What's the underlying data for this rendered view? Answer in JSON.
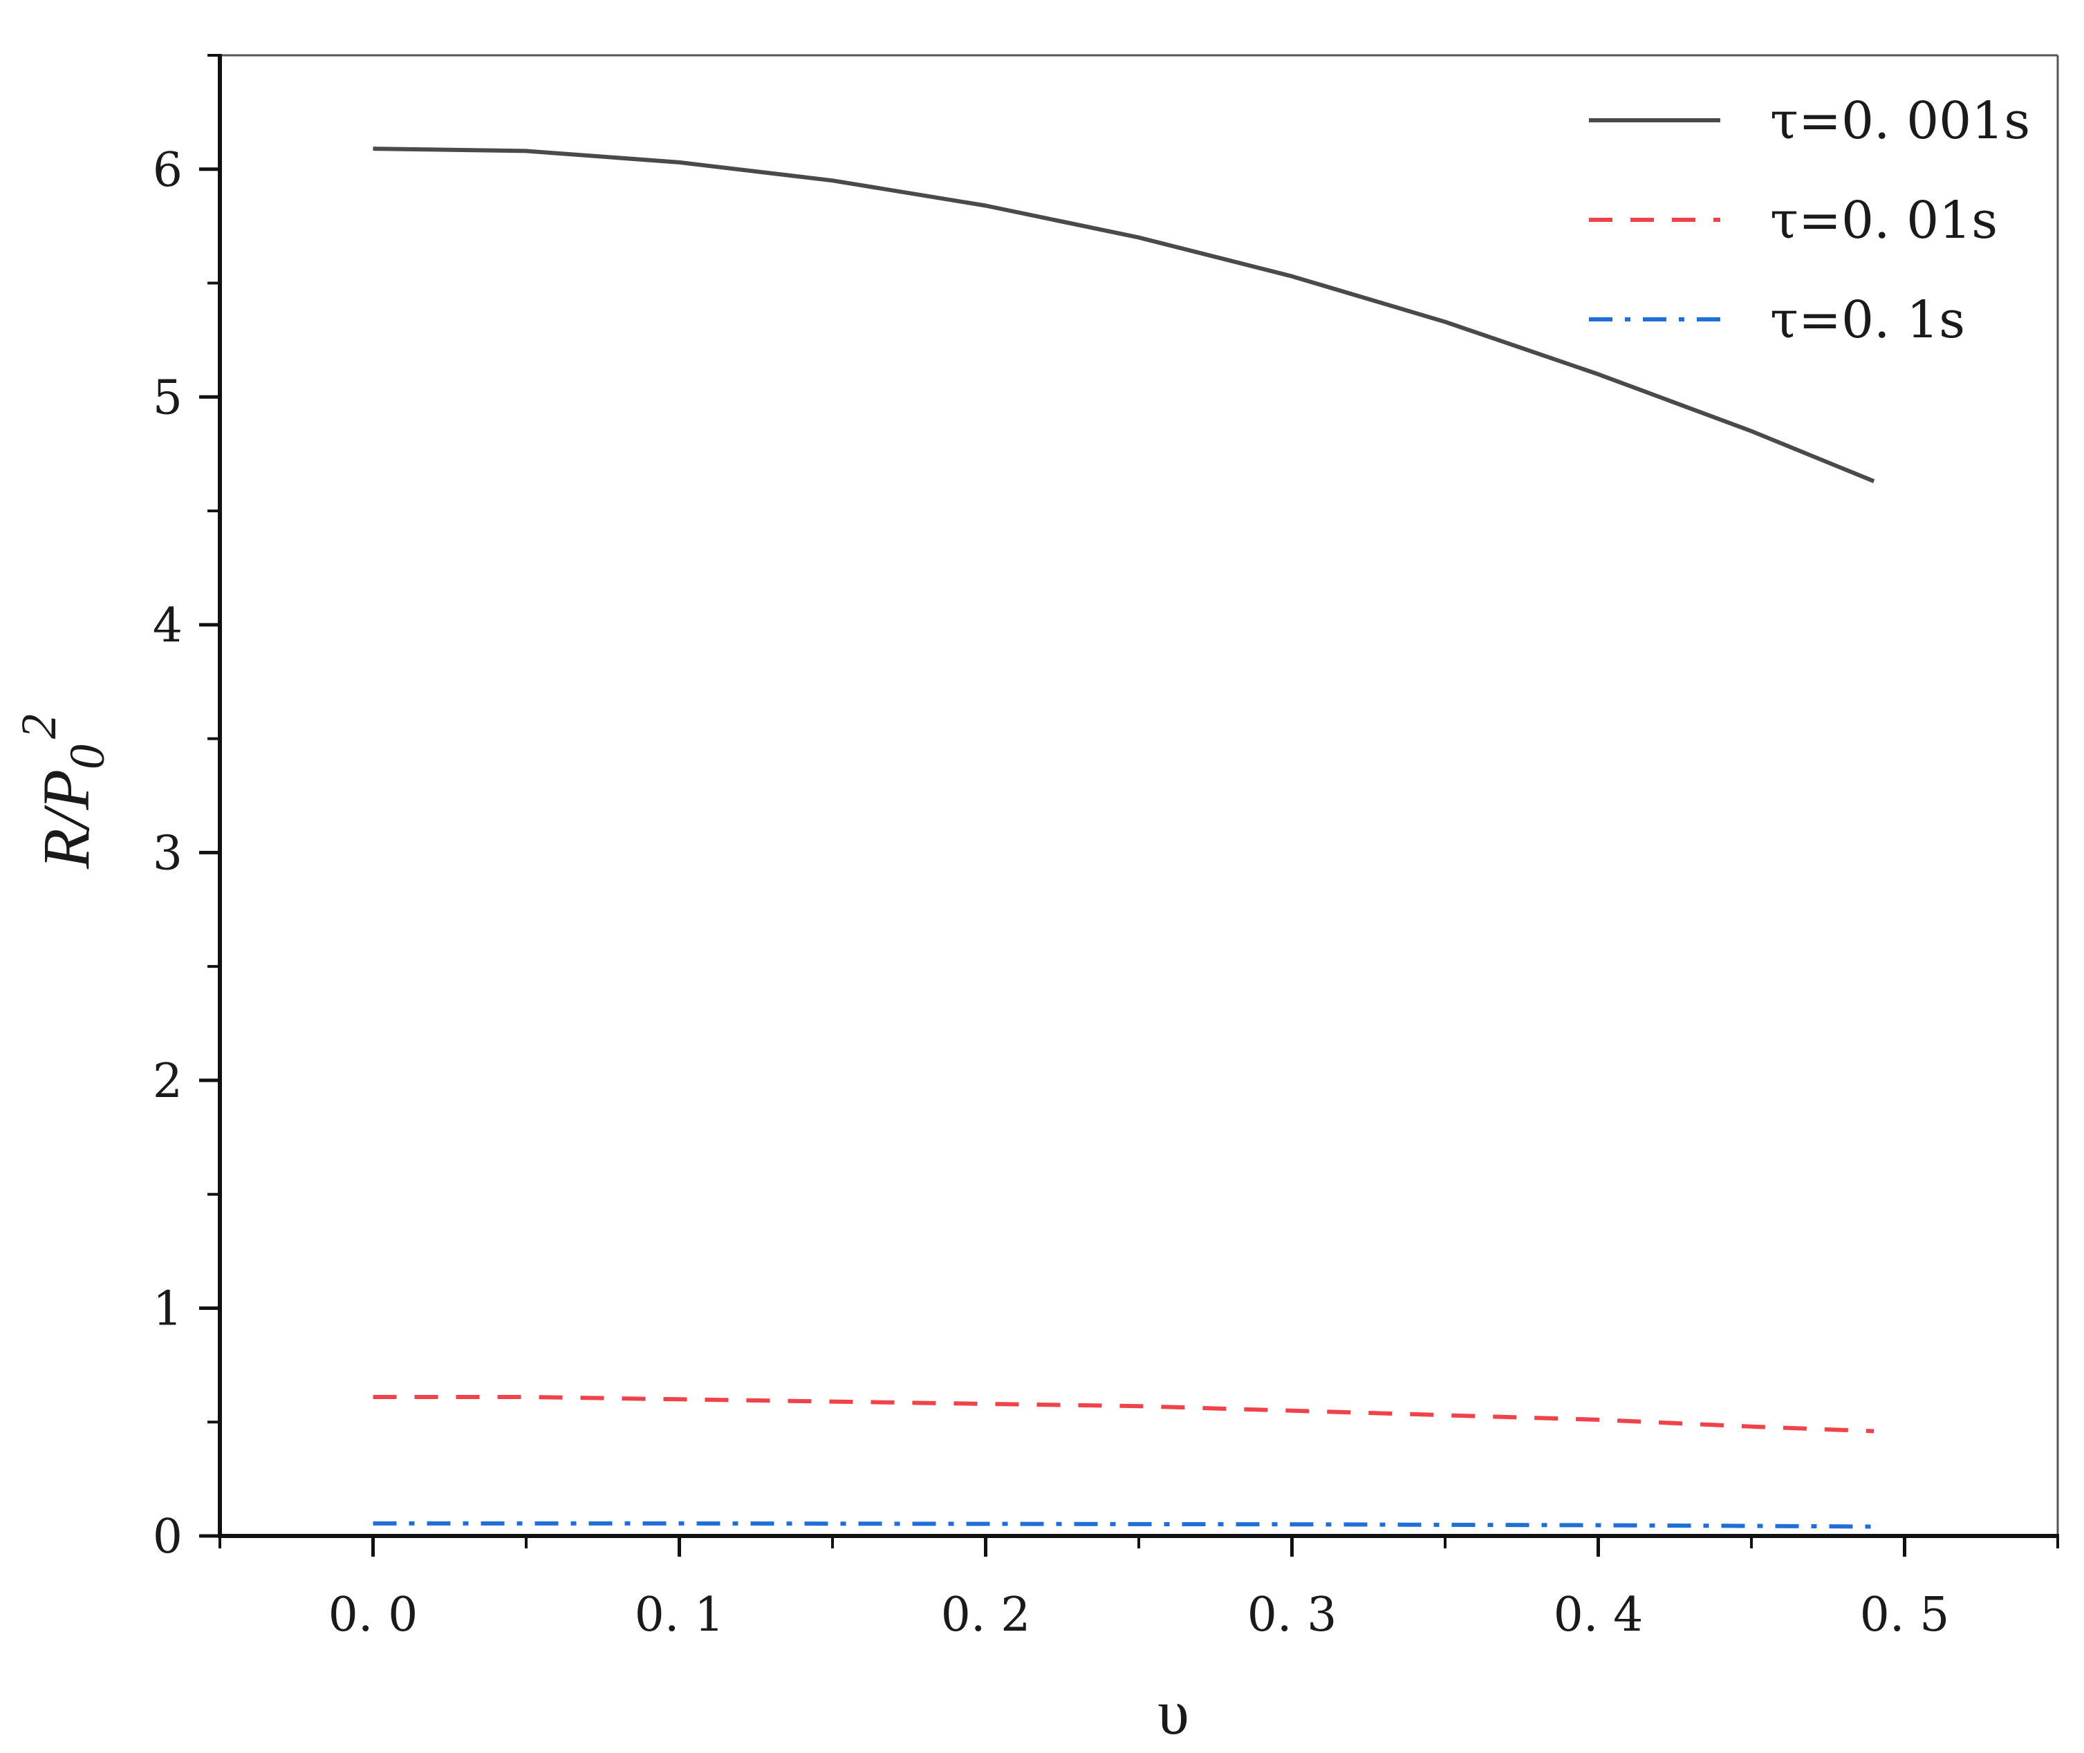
{
  "chart_data": {
    "type": "line",
    "xlabel": "υ",
    "ylabel": {
      "base": "R/P",
      "subscript": "0",
      "superscript": "2"
    },
    "xlim": [
      -0.05,
      0.55
    ],
    "ylim": [
      0,
      6.5
    ],
    "x_ticks": [
      {
        "value": 0.0,
        "label": "0. 0"
      },
      {
        "value": 0.1,
        "label": "0. 1"
      },
      {
        "value": 0.2,
        "label": "0. 2"
      },
      {
        "value": 0.3,
        "label": "0. 3"
      },
      {
        "value": 0.4,
        "label": "0. 4"
      },
      {
        "value": 0.5,
        "label": "0. 5"
      }
    ],
    "x_minor_ticks": [
      -0.05,
      0.05,
      0.15,
      0.25,
      0.35,
      0.45,
      0.55
    ],
    "y_ticks": [
      {
        "value": 0,
        "label": "0"
      },
      {
        "value": 1,
        "label": "1"
      },
      {
        "value": 2,
        "label": "2"
      },
      {
        "value": 3,
        "label": "3"
      },
      {
        "value": 4,
        "label": "4"
      },
      {
        "value": 5,
        "label": "5"
      },
      {
        "value": 6,
        "label": "6"
      }
    ],
    "y_minor_ticks": [
      0.5,
      1.5,
      2.5,
      3.5,
      4.5,
      5.5,
      6.5
    ],
    "grid": false,
    "legend_position": "top-right",
    "x": [
      0.0,
      0.05,
      0.1,
      0.15,
      0.2,
      0.25,
      0.3,
      0.35,
      0.4,
      0.45,
      0.49
    ],
    "series": [
      {
        "name": "τ=0. 001s",
        "color": "#4a4a4a",
        "dash": "solid",
        "values": [
          6.09,
          6.08,
          6.03,
          5.95,
          5.84,
          5.7,
          5.53,
          5.33,
          5.1,
          4.85,
          4.63
        ]
      },
      {
        "name": "τ=0. 01s",
        "color": "#f0424a",
        "dash": "dash",
        "values": [
          0.61,
          0.61,
          0.6,
          0.59,
          0.58,
          0.57,
          0.55,
          0.53,
          0.51,
          0.48,
          0.46
        ]
      },
      {
        "name": "τ=0. 1s",
        "color": "#1f6fd6",
        "dash": "dashdot",
        "values": [
          0.055,
          0.055,
          0.055,
          0.054,
          0.053,
          0.052,
          0.051,
          0.049,
          0.047,
          0.044,
          0.041
        ]
      }
    ]
  }
}
